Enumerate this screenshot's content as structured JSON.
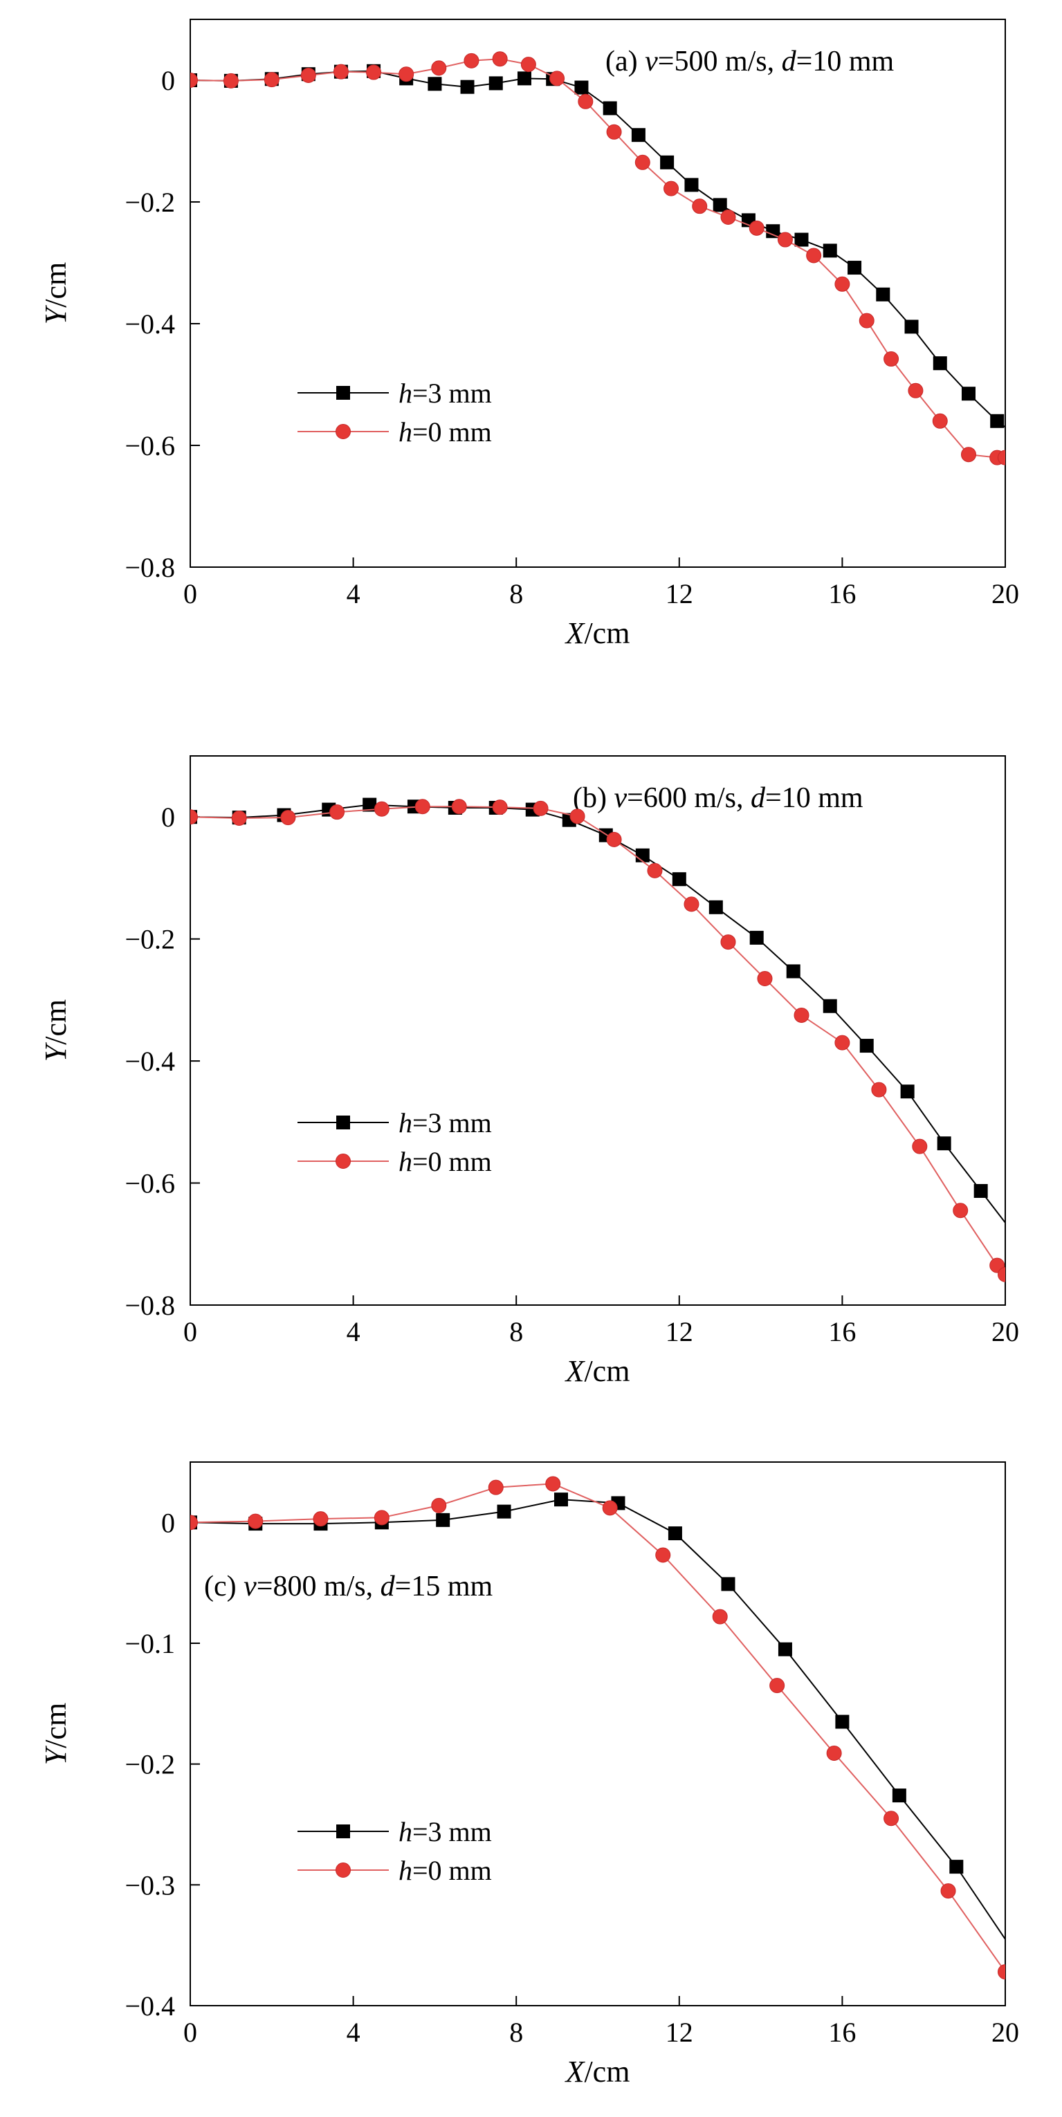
{
  "chart_data": [
    {
      "type": "line",
      "panel_label": "(a) v=500 m/s, d=10 mm",
      "panel_label_parts": {
        "prefix": "(a) ",
        "v_symbol": "v",
        "v_value": "=500 m/s, ",
        "d_symbol": "d",
        "d_value": "=10 mm"
      },
      "xlabel": "X/cm",
      "xlabel_parts": {
        "symbol": "X",
        "unit": "/cm"
      },
      "ylabel": "Y/cm",
      "ylabel_parts": {
        "symbol": "Y",
        "unit": "/cm"
      },
      "xlim": [
        0,
        20
      ],
      "ylim": [
        -0.8,
        0.1
      ],
      "xticks": [
        0,
        4,
        8,
        12,
        16,
        20
      ],
      "xtick_labels": [
        "0",
        "4",
        "8",
        "12",
        "16",
        "20"
      ],
      "yticks": [
        0,
        -0.2,
        -0.4,
        -0.6,
        -0.8
      ],
      "ytick_labels": [
        "0",
        "−0.2",
        "−0.4",
        "−0.6",
        "−0.8"
      ],
      "grid": false,
      "legend_position": "middle-left",
      "series": [
        {
          "name": "h=3 mm",
          "legend_parts": {
            "symbol": "h",
            "value": "=3 mm"
          },
          "marker": "square",
          "color": "#000000",
          "line_color": "#000000",
          "x": [
            0,
            1.0,
            2.0,
            2.9,
            3.7,
            4.5,
            5.3,
            6.0,
            6.8,
            7.5,
            8.2,
            8.9,
            9.6,
            10.3,
            11.0,
            11.7,
            12.3,
            13.0,
            13.7,
            14.3,
            15.0,
            15.7,
            16.3,
            17.0,
            17.7,
            18.4,
            19.1,
            19.8,
            20.0
          ],
          "y": [
            0,
            -0.001,
            0.002,
            0.01,
            0.014,
            0.015,
            0.003,
            -0.006,
            -0.011,
            -0.005,
            0.003,
            0.002,
            -0.012,
            -0.046,
            -0.09,
            -0.135,
            -0.172,
            -0.205,
            -0.23,
            -0.248,
            -0.262,
            -0.28,
            -0.308,
            -0.352,
            -0.405,
            -0.465,
            -0.515,
            -0.56,
            -0.57
          ]
        },
        {
          "name": "h=0 mm",
          "legend_parts": {
            "symbol": "h",
            "value": "=0 mm"
          },
          "marker": "circle",
          "color": "#e53935",
          "line_color": "#e06060",
          "x": [
            0,
            1.0,
            2.0,
            2.9,
            3.7,
            4.5,
            5.3,
            6.1,
            6.9,
            7.6,
            8.3,
            9.0,
            9.7,
            10.4,
            11.1,
            11.8,
            12.5,
            13.2,
            13.9,
            14.6,
            15.3,
            16.0,
            16.6,
            17.2,
            17.8,
            18.4,
            19.1,
            19.8,
            20.0
          ],
          "y": [
            0,
            -0.001,
            0.001,
            0.008,
            0.014,
            0.013,
            0.01,
            0.02,
            0.032,
            0.035,
            0.026,
            0.003,
            -0.035,
            -0.085,
            -0.135,
            -0.178,
            -0.207,
            -0.225,
            -0.243,
            -0.262,
            -0.288,
            -0.335,
            -0.395,
            -0.458,
            -0.51,
            -0.56,
            -0.615,
            -0.62,
            -0.62
          ]
        }
      ]
    },
    {
      "type": "line",
      "panel_label": "(b) v=600 m/s, d=10 mm",
      "panel_label_parts": {
        "prefix": "(b) ",
        "v_symbol": "v",
        "v_value": "=600 m/s, ",
        "d_symbol": "d",
        "d_value": "=10 mm"
      },
      "xlabel": "X/cm",
      "xlabel_parts": {
        "symbol": "X",
        "unit": "/cm"
      },
      "ylabel": "Y/cm",
      "ylabel_parts": {
        "symbol": "Y",
        "unit": "/cm"
      },
      "xlim": [
        0,
        20
      ],
      "ylim": [
        -0.8,
        0.1
      ],
      "xticks": [
        0,
        4,
        8,
        12,
        16,
        20
      ],
      "xtick_labels": [
        "0",
        "4",
        "8",
        "12",
        "16",
        "20"
      ],
      "yticks": [
        0,
        -0.2,
        -0.4,
        -0.6,
        -0.8
      ],
      "ytick_labels": [
        "0",
        "−0.2",
        "−0.4",
        "−0.6",
        "−0.8"
      ],
      "grid": false,
      "legend_position": "lower-left",
      "series": [
        {
          "name": "h=3 mm",
          "legend_parts": {
            "symbol": "h",
            "value": "=3 mm"
          },
          "marker": "square",
          "color": "#000000",
          "line_color": "#000000",
          "x": [
            0,
            1.2,
            2.3,
            3.4,
            4.4,
            5.5,
            6.5,
            7.5,
            8.4,
            9.3,
            10.2,
            11.1,
            12.0,
            12.9,
            13.9,
            14.8,
            15.7,
            16.6,
            17.6,
            18.5,
            19.4,
            20.0
          ],
          "y": [
            0,
            -0.001,
            0.003,
            0.012,
            0.02,
            0.017,
            0.015,
            0.015,
            0.012,
            -0.005,
            -0.03,
            -0.063,
            -0.102,
            -0.148,
            -0.198,
            -0.253,
            -0.31,
            -0.375,
            -0.45,
            -0.535,
            -0.613,
            -0.665
          ]
        },
        {
          "name": "h=0 mm",
          "legend_parts": {
            "symbol": "h",
            "value": "=0 mm"
          },
          "marker": "circle",
          "color": "#e53935",
          "line_color": "#e06060",
          "x": [
            0,
            1.2,
            2.4,
            3.6,
            4.7,
            5.7,
            6.6,
            7.6,
            8.6,
            9.5,
            10.4,
            11.4,
            12.3,
            13.2,
            14.1,
            15.0,
            16.0,
            16.9,
            17.9,
            18.9,
            19.8,
            20.0
          ],
          "y": [
            0,
            -0.002,
            -0.001,
            0.008,
            0.013,
            0.017,
            0.017,
            0.016,
            0.014,
            0.001,
            -0.037,
            -0.088,
            -0.143,
            -0.205,
            -0.265,
            -0.325,
            -0.37,
            -0.447,
            -0.54,
            -0.645,
            -0.735,
            -0.75
          ]
        }
      ]
    },
    {
      "type": "line",
      "panel_label": "(c) v=800 m/s, d=15 mm",
      "panel_label_parts": {
        "prefix": "(c) ",
        "v_symbol": "v",
        "v_value": "=800 m/s, ",
        "d_symbol": "d",
        "d_value": "=15 mm"
      },
      "xlabel": "X/cm",
      "xlabel_parts": {
        "symbol": "X",
        "unit": "/cm"
      },
      "ylabel": "Y/cm",
      "ylabel_parts": {
        "symbol": "Y",
        "unit": "/cm"
      },
      "xlim": [
        0,
        20
      ],
      "ylim": [
        -0.4,
        0.05
      ],
      "xticks": [
        0,
        4,
        8,
        12,
        16,
        20
      ],
      "xtick_labels": [
        "0",
        "4",
        "8",
        "12",
        "16",
        "20"
      ],
      "yticks": [
        0,
        -0.1,
        -0.2,
        -0.3,
        -0.4
      ],
      "ytick_labels": [
        "0",
        "−0.1",
        "−0.2",
        "−0.3",
        "−0.4"
      ],
      "grid": false,
      "legend_position": "lower-left",
      "series": [
        {
          "name": "h=3 mm",
          "legend_parts": {
            "symbol": "h",
            "value": "=3 mm"
          },
          "marker": "square",
          "color": "#000000",
          "line_color": "#000000",
          "x": [
            0,
            1.6,
            3.2,
            4.7,
            6.2,
            7.7,
            9.1,
            10.5,
            11.9,
            13.2,
            14.6,
            16.0,
            17.4,
            18.8,
            20.0
          ],
          "y": [
            0,
            -0.001,
            -0.001,
            0,
            0.002,
            0.009,
            0.019,
            0.016,
            -0.009,
            -0.051,
            -0.105,
            -0.165,
            -0.226,
            -0.285,
            -0.345
          ]
        },
        {
          "name": "h=0 mm",
          "legend_parts": {
            "symbol": "h",
            "value": "=0 mm"
          },
          "marker": "circle",
          "color": "#e53935",
          "line_color": "#e06060",
          "x": [
            0,
            1.6,
            3.2,
            4.7,
            6.1,
            7.5,
            8.9,
            10.3,
            11.6,
            13.0,
            14.4,
            15.8,
            17.2,
            18.6,
            20.0
          ],
          "y": [
            0,
            0.001,
            0.003,
            0.004,
            0.014,
            0.029,
            0.032,
            0.012,
            -0.027,
            -0.078,
            -0.135,
            -0.191,
            -0.245,
            -0.305,
            -0.372
          ]
        }
      ]
    }
  ]
}
